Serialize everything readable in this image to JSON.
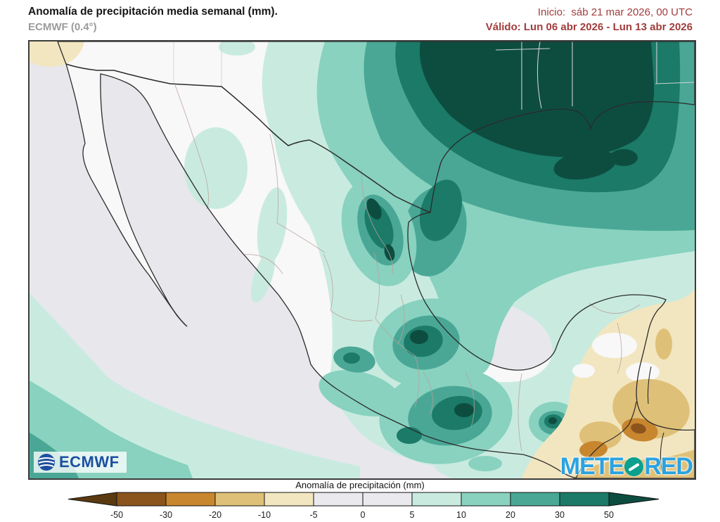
{
  "header": {
    "title": "Anomalía de precipitación media semanal (mm).",
    "subtitle": "ECMWF (0.4°)",
    "init": "Inicio:  sáb 21 mar 2026, 00 UTC",
    "valid": "Válido: Lun 06 abr 2026 - Lun 13 abr 2026",
    "date_color": "#a23c3c"
  },
  "map": {
    "sea_color": "#e7e7ec",
    "land_color": "#f8f8f8",
    "border_color": "#2b2b2b",
    "state_line_color": "#b9a29b",
    "us_state_line_color": "#d5d8d7",
    "ecmwf_logo_text": "ECMWF",
    "ecmwf_logo_color": "#1c4fa1",
    "meteored_logo": {
      "part1": "METE",
      "part2": "RED",
      "text_color": "#2ba3e0",
      "o_color": "#0aa08f"
    }
  },
  "colorbar": {
    "label": "Anomalía de precipitación (mm)",
    "ticks": [
      "-50",
      "-30",
      "-20",
      "-10",
      "-5",
      "0",
      "5",
      "10",
      "20",
      "30",
      "50"
    ],
    "segment_colors": [
      "#8a541c",
      "#c8862f",
      "#dfc078",
      "#f2e6c0",
      "#e9e9ee",
      "#e9e9ee",
      "#c9ebdf",
      "#88d2bf",
      "#4aa796",
      "#1b7a68"
    ],
    "under_color": "#5a3a10",
    "over_color": "#0d4d40",
    "units": "mm"
  }
}
